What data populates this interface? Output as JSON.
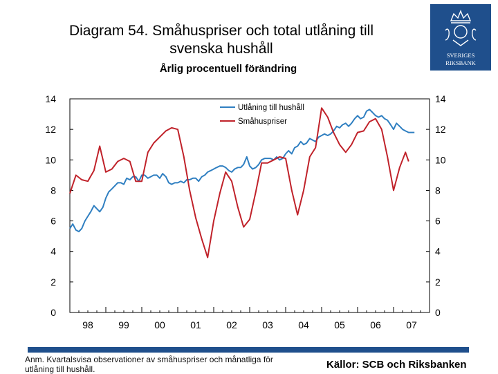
{
  "header": {
    "title_line1": "Diagram 54. Småhuspriser och total utlåning till",
    "title_line2": "svenska hushåll",
    "subtitle": "Årlig procentuell förändring"
  },
  "logo": {
    "line1": "SVERIGES",
    "line2": "RIKSBANK",
    "accent": "#1f4f8c"
  },
  "chart_data": {
    "type": "line",
    "title": "Diagram 54. Småhuspriser och total utlåning till svenska hushåll",
    "subtitle": "Årlig procentuell förändring",
    "ylim": [
      0,
      14
    ],
    "yticks": [
      0,
      2,
      4,
      6,
      8,
      10,
      12,
      14
    ],
    "yticks_right": [
      0,
      2,
      4,
      6,
      8,
      10,
      12,
      14
    ],
    "xlim": [
      1998,
      2008
    ],
    "xtick_positions": [
      1998,
      1999,
      2000,
      2001,
      2002,
      2003,
      2004,
      2005,
      2006,
      2007
    ],
    "xtick_labels": [
      "98",
      "99",
      "00",
      "01",
      "02",
      "03",
      "04",
      "05",
      "06",
      "07"
    ],
    "legend_position": "top-right",
    "series": [
      {
        "name": "Utlåning till hushåll",
        "color": "#2f7fc1",
        "x": [
          1998.0,
          1998.08,
          1998.17,
          1998.25,
          1998.33,
          1998.42,
          1998.5,
          1998.58,
          1998.67,
          1998.75,
          1998.83,
          1998.92,
          1999.0,
          1999.08,
          1999.17,
          1999.25,
          1999.33,
          1999.42,
          1999.5,
          1999.58,
          1999.67,
          1999.75,
          1999.83,
          1999.92,
          2000.0,
          2000.08,
          2000.17,
          2000.25,
          2000.33,
          2000.42,
          2000.5,
          2000.58,
          2000.67,
          2000.75,
          2000.83,
          2000.92,
          2001.0,
          2001.08,
          2001.17,
          2001.25,
          2001.33,
          2001.42,
          2001.5,
          2001.58,
          2001.67,
          2001.75,
          2001.83,
          2001.92,
          2002.0,
          2002.08,
          2002.17,
          2002.25,
          2002.33,
          2002.42,
          2002.5,
          2002.58,
          2002.67,
          2002.75,
          2002.83,
          2002.92,
          2003.0,
          2003.08,
          2003.17,
          2003.25,
          2003.33,
          2003.42,
          2003.5,
          2003.58,
          2003.67,
          2003.75,
          2003.83,
          2003.92,
          2004.0,
          2004.08,
          2004.17,
          2004.25,
          2004.33,
          2004.42,
          2004.5,
          2004.58,
          2004.67,
          2004.75,
          2004.83,
          2004.92,
          2005.0,
          2005.08,
          2005.17,
          2005.25,
          2005.33,
          2005.42,
          2005.5,
          2005.58,
          2005.67,
          2005.75,
          2005.83,
          2005.92,
          2006.0,
          2006.08,
          2006.17,
          2006.25,
          2006.33,
          2006.42,
          2006.5,
          2006.58,
          2006.67,
          2006.75,
          2006.83,
          2006.92,
          2007.0,
          2007.08,
          2007.17,
          2007.25,
          2007.33,
          2007.42,
          2007.5,
          2007.58
        ],
        "values": [
          5.5,
          5.8,
          5.4,
          5.3,
          5.5,
          6.0,
          6.3,
          6.6,
          7.0,
          6.8,
          6.6,
          6.9,
          7.5,
          7.9,
          8.1,
          8.3,
          8.5,
          8.5,
          8.4,
          8.8,
          8.7,
          8.9,
          8.9,
          8.6,
          9.0,
          9.0,
          8.8,
          8.9,
          9.0,
          9.0,
          8.8,
          9.1,
          8.9,
          8.5,
          8.4,
          8.5,
          8.5,
          8.6,
          8.5,
          8.7,
          8.7,
          8.8,
          8.8,
          8.6,
          8.9,
          9.0,
          9.2,
          9.3,
          9.4,
          9.5,
          9.6,
          9.6,
          9.5,
          9.3,
          9.2,
          9.4,
          9.5,
          9.5,
          9.7,
          10.2,
          9.6,
          9.4,
          9.5,
          9.7,
          10.0,
          10.1,
          10.1,
          10.1,
          10.0,
          10.2,
          10.0,
          10.1,
          10.4,
          10.6,
          10.4,
          10.8,
          10.9,
          11.2,
          11.0,
          11.1,
          11.4,
          11.3,
          11.2,
          11.5,
          11.6,
          11.7,
          11.6,
          11.7,
          11.9,
          12.2,
          12.1,
          12.3,
          12.4,
          12.2,
          12.4,
          12.7,
          12.9,
          12.7,
          12.8,
          13.2,
          13.3,
          13.1,
          12.9,
          12.8,
          12.9,
          12.7,
          12.6,
          12.3,
          12.0,
          12.4,
          12.2,
          12.0,
          11.9,
          11.8,
          11.8,
          11.8
        ]
      },
      {
        "name": "Småhuspriser",
        "color": "#c0222a",
        "x": [
          1998.0,
          1998.17,
          1998.33,
          1998.5,
          1998.67,
          1998.83,
          1999.0,
          1999.17,
          1999.33,
          1999.5,
          1999.67,
          1999.83,
          2000.0,
          2000.17,
          2000.33,
          2000.5,
          2000.67,
          2000.83,
          2001.0,
          2001.17,
          2001.33,
          2001.5,
          2001.67,
          2001.83,
          2002.0,
          2002.17,
          2002.33,
          2002.5,
          2002.67,
          2002.83,
          2003.0,
          2003.17,
          2003.33,
          2003.5,
          2003.67,
          2003.83,
          2004.0,
          2004.17,
          2004.33,
          2004.5,
          2004.67,
          2004.83,
          2005.0,
          2005.17,
          2005.33,
          2005.5,
          2005.67,
          2005.83,
          2006.0,
          2006.17,
          2006.33,
          2006.5,
          2006.67,
          2006.83,
          2007.0,
          2007.17,
          2007.33,
          2007.42
        ],
        "values": [
          7.8,
          9.0,
          8.7,
          8.6,
          9.3,
          10.9,
          9.2,
          9.4,
          9.9,
          10.1,
          9.9,
          8.6,
          8.6,
          10.5,
          11.1,
          11.5,
          11.9,
          12.1,
          12.0,
          10.2,
          8.0,
          6.2,
          4.8,
          3.6,
          6.0,
          7.8,
          9.2,
          8.6,
          6.9,
          5.6,
          6.1,
          7.9,
          9.8,
          9.8,
          10.0,
          10.2,
          10.1,
          8.0,
          6.4,
          8.0,
          10.2,
          10.8,
          13.4,
          12.8,
          11.8,
          11.0,
          10.5,
          11.0,
          11.8,
          11.9,
          12.5,
          12.7,
          12.0,
          10.2,
          8.0,
          9.5,
          10.5,
          9.9
        ]
      }
    ]
  },
  "footer": {
    "note_line1": "Anm. Kvartalsvisa observationer av småhuspriser och månatliga för",
    "note_line2": "utlåning till hushåll.",
    "source": "Källor: SCB och Riksbanken"
  }
}
